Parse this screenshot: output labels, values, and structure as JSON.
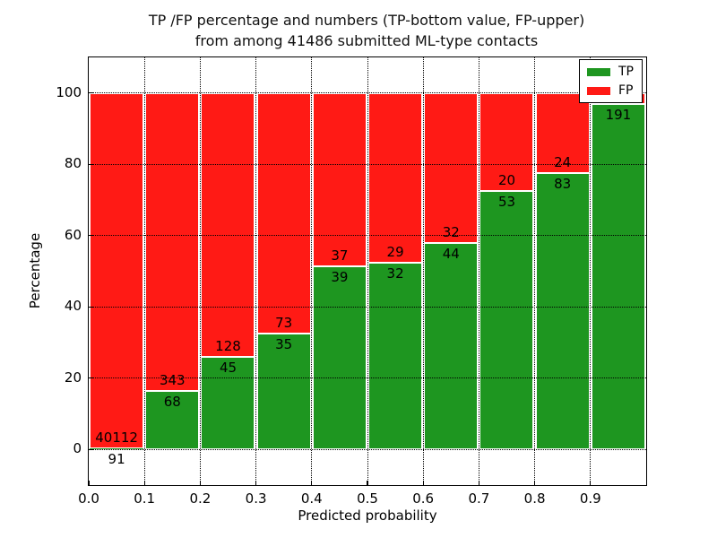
{
  "title": {
    "line1": "TP /FP percentage and numbers (TP-bottom value, FP-upper)",
    "line2": "from among 41486 submitted ML-type contacts"
  },
  "axes": {
    "xlabel": "Predicted probability",
    "ylabel": "Percentage"
  },
  "legend": {
    "tp_label": "TP",
    "fp_label": "FP"
  },
  "colors": {
    "tp": "#1e9620",
    "fp": "#ff1a15",
    "grid": "#000000",
    "background": "#ffffff"
  },
  "chart_data": {
    "type": "bar",
    "stacked": true,
    "title": "TP /FP percentage and numbers (TP-bottom value, FP-upper) from among 41486 submitted ML-type contacts",
    "total_contacts": 41486,
    "xlabel": "Predicted probability",
    "ylabel": "Percentage",
    "xlim": [
      0.0,
      1.0
    ],
    "ylim": [
      -10,
      110
    ],
    "grid": "dotted",
    "legend_position": "upper right",
    "x_tick_labels": [
      "0.0",
      "0.1",
      "0.2",
      "0.3",
      "0.4",
      "0.5",
      "0.6",
      "0.7",
      "0.8",
      "0.9"
    ],
    "y_tick_labels": [
      "0",
      "20",
      "40",
      "60",
      "80",
      "100"
    ],
    "y_tick_values": [
      0,
      20,
      40,
      60,
      80,
      100
    ],
    "series": [
      {
        "name": "TP",
        "color": "#1e9620"
      },
      {
        "name": "FP",
        "color": "#ff1a15"
      }
    ],
    "bars": [
      {
        "x0": 0.0,
        "x1": 0.1,
        "tp": 91,
        "fp": 40112,
        "tp_pct": 0.23,
        "fp_pct": 99.77
      },
      {
        "x0": 0.1,
        "x1": 0.2,
        "tp": 68,
        "fp": 343,
        "tp_pct": 16.5,
        "fp_pct": 83.5
      },
      {
        "x0": 0.2,
        "x1": 0.3,
        "tp": 45,
        "fp": 128,
        "tp_pct": 26.0,
        "fp_pct": 74.0
      },
      {
        "x0": 0.3,
        "x1": 0.4,
        "tp": 35,
        "fp": 73,
        "tp_pct": 32.4,
        "fp_pct": 67.6
      },
      {
        "x0": 0.4,
        "x1": 0.5,
        "tp": 39,
        "fp": 37,
        "tp_pct": 51.3,
        "fp_pct": 48.7
      },
      {
        "x0": 0.5,
        "x1": 0.6,
        "tp": 32,
        "fp": 29,
        "tp_pct": 52.5,
        "fp_pct": 47.5
      },
      {
        "x0": 0.6,
        "x1": 0.7,
        "tp": 44,
        "fp": 32,
        "tp_pct": 57.9,
        "fp_pct": 42.1
      },
      {
        "x0": 0.7,
        "x1": 0.8,
        "tp": 53,
        "fp": 20,
        "tp_pct": 72.6,
        "fp_pct": 27.4
      },
      {
        "x0": 0.8,
        "x1": 0.9,
        "tp": 83,
        "fp": 24,
        "tp_pct": 77.6,
        "fp_pct": 22.4
      },
      {
        "x0": 0.9,
        "x1": 1.0,
        "tp": 191,
        "fp": null,
        "tp_pct": 96.9,
        "fp_pct": 3.1
      }
    ]
  }
}
